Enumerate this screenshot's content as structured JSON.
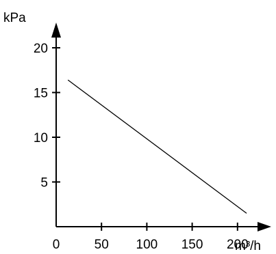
{
  "chart_data": {
    "type": "line",
    "title": "",
    "ylabel": "kPa",
    "xlabel": "m³/h",
    "xlim": [
      0,
      255
    ],
    "ylim": [
      0,
      22
    ],
    "x_ticks": [
      0,
      50,
      100,
      150,
      200
    ],
    "x_tick_labels": [
      "0",
      "50",
      "100",
      "150",
      "200"
    ],
    "y_ticks": [
      5,
      10,
      15,
      20
    ],
    "y_tick_labels": [
      "5",
      "10",
      "15",
      "20"
    ],
    "grid": false,
    "legend": "none",
    "series": [
      {
        "x": [
          13,
          210
        ],
        "y": [
          16.4,
          1.5
        ]
      }
    ],
    "colors": {
      "axis": "#000000",
      "line": "#000000"
    }
  }
}
